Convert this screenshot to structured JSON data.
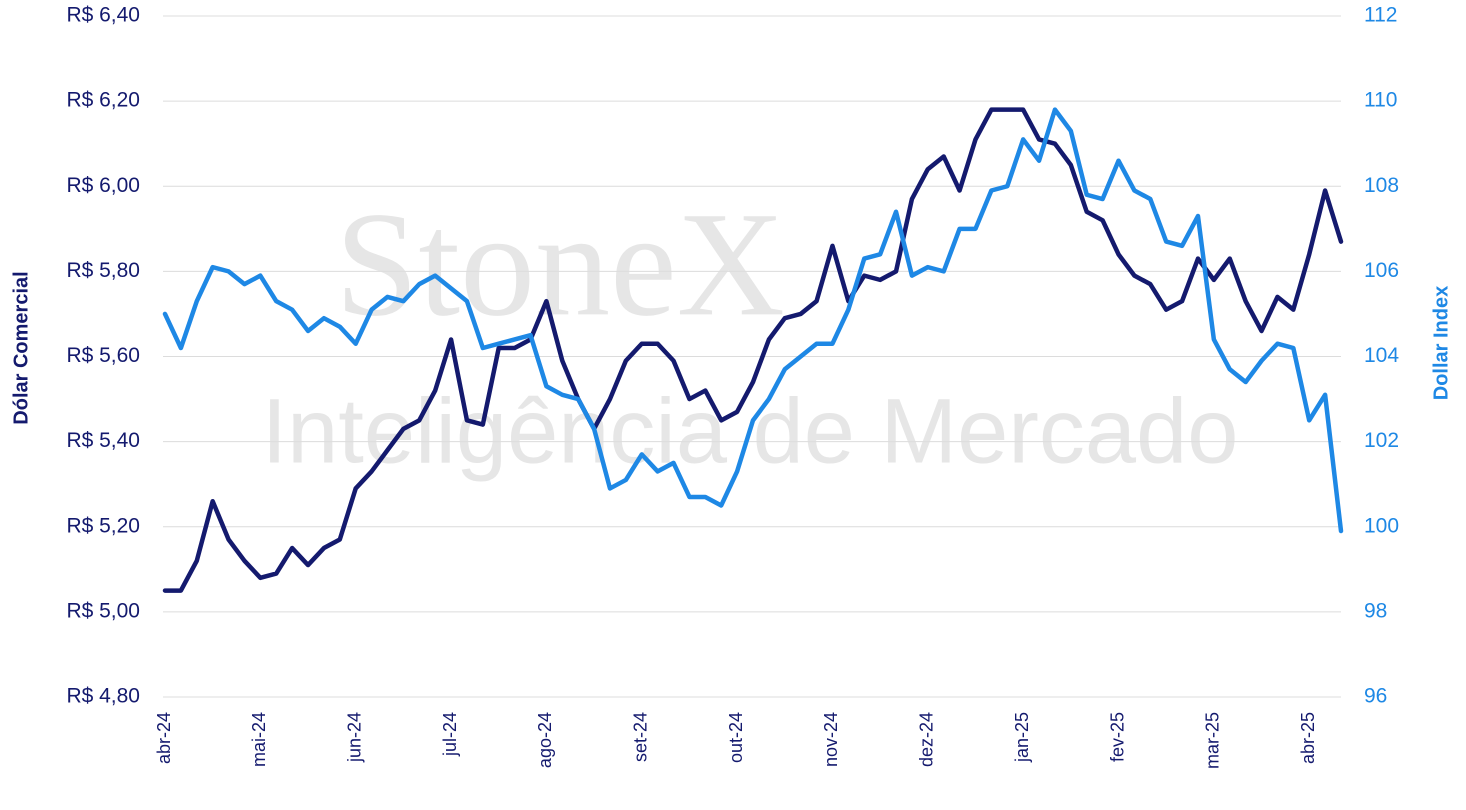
{
  "chart_data": {
    "type": "line",
    "watermark": [
      "StoneX",
      "Inteligência de Mercado"
    ],
    "ylabel": "Dólar Comercial",
    "y2label": "Dollar Index",
    "categories": [
      "abr-24",
      null,
      null,
      null,
      null,
      null,
      "mai-24",
      null,
      null,
      null,
      null,
      null,
      "jun-24",
      null,
      null,
      null,
      null,
      null,
      "jul-24",
      null,
      null,
      null,
      null,
      null,
      "ago-24",
      null,
      null,
      null,
      null,
      null,
      "set-24",
      null,
      null,
      null,
      null,
      null,
      "out-24",
      null,
      null,
      null,
      null,
      null,
      "nov-24",
      null,
      null,
      null,
      null,
      null,
      "dez-24",
      null,
      null,
      null,
      null,
      null,
      "jan-25",
      null,
      null,
      null,
      null,
      null,
      "fev-25",
      null,
      null,
      null,
      null,
      null,
      "mar-25",
      null,
      null,
      null,
      null,
      null,
      "abr-25",
      null,
      null
    ],
    "series": [
      {
        "name": "Dólar Comercial",
        "color": "#141a6e",
        "axis": "y",
        "values": [
          5.05,
          5.05,
          5.12,
          5.26,
          5.17,
          5.12,
          5.08,
          5.09,
          5.15,
          5.11,
          5.15,
          5.17,
          5.29,
          5.33,
          5.38,
          5.43,
          5.45,
          5.52,
          5.64,
          5.45,
          5.44,
          5.62,
          5.62,
          5.64,
          5.73,
          5.59,
          5.5,
          5.43,
          5.5,
          5.59,
          5.63,
          5.63,
          5.59,
          5.5,
          5.52,
          5.45,
          5.47,
          5.54,
          5.64,
          5.69,
          5.7,
          5.73,
          5.86,
          5.73,
          5.79,
          5.78,
          5.8,
          5.97,
          6.04,
          6.07,
          5.99,
          6.11,
          6.18,
          6.18,
          6.18,
          6.11,
          6.1,
          6.05,
          5.94,
          5.92,
          5.84,
          5.79,
          5.77,
          5.71,
          5.73,
          5.83,
          5.78,
          5.83,
          5.73,
          5.66,
          5.74,
          5.71,
          5.84,
          5.99,
          5.87
        ]
      },
      {
        "name": "Dollar Index",
        "color": "#1e88e5",
        "axis": "y2",
        "values": [
          105.0,
          104.2,
          105.3,
          106.1,
          106.0,
          105.7,
          105.9,
          105.3,
          105.1,
          104.6,
          104.9,
          104.7,
          104.3,
          105.1,
          105.4,
          105.3,
          105.7,
          105.9,
          105.6,
          105.3,
          104.2,
          104.3,
          104.4,
          104.5,
          103.3,
          103.1,
          103.0,
          102.3,
          100.9,
          101.1,
          101.7,
          101.3,
          101.5,
          100.7,
          100.7,
          100.5,
          101.3,
          102.5,
          103.0,
          103.7,
          104.0,
          104.3,
          104.3,
          105.1,
          106.3,
          106.4,
          107.4,
          105.9,
          106.1,
          106.0,
          107.0,
          107.0,
          107.9,
          108.0,
          109.1,
          108.6,
          109.8,
          109.3,
          107.8,
          107.7,
          108.6,
          107.9,
          107.7,
          106.7,
          106.6,
          107.3,
          104.4,
          103.7,
          103.4,
          103.9,
          104.3,
          104.2,
          102.5,
          103.1,
          99.9
        ]
      }
    ],
    "ylim": [
      4.8,
      6.4
    ],
    "yticks": [
      {
        "value": 4.8,
        "label": "R$ 4,80"
      },
      {
        "value": 5.0,
        "label": "R$ 5,00"
      },
      {
        "value": 5.2,
        "label": "R$ 5,20"
      },
      {
        "value": 5.4,
        "label": "R$ 5,40"
      },
      {
        "value": 5.6,
        "label": "R$ 5,60"
      },
      {
        "value": 5.8,
        "label": "R$ 5,80"
      },
      {
        "value": 6.0,
        "label": "R$ 6,00"
      },
      {
        "value": 6.2,
        "label": "R$ 6,20"
      },
      {
        "value": 6.4,
        "label": "R$ 6,40"
      }
    ],
    "y2lim": [
      96,
      112
    ],
    "y2ticks": [
      96,
      98,
      100,
      102,
      104,
      106,
      108,
      110,
      112
    ],
    "grid": true
  }
}
